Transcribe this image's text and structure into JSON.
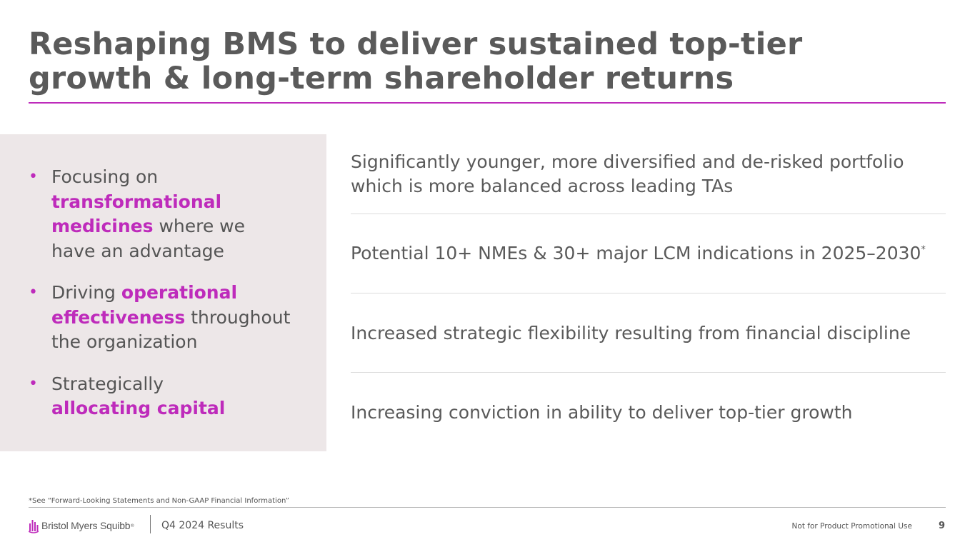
{
  "slide": {
    "title": "Reshaping BMS to deliver sustained top-tier growth & long-term shareholder returns"
  },
  "left_panel": {
    "bullets": [
      {
        "pre": "Focusing on ",
        "highlight": "transformational medicines",
        "post": " where we have an advantage"
      },
      {
        "pre": "Driving ",
        "highlight": "operational effectiveness",
        "post": " throughout the organization"
      },
      {
        "pre": "Strategically ",
        "highlight": "allocating capital",
        "post": ""
      }
    ]
  },
  "right_items": [
    {
      "text": "Significantly younger, more diversified and de-risked portfolio which is more balanced across leading TAs",
      "sup": ""
    },
    {
      "text": "Potential 10+ NMEs & 30+ major LCM indications in 2025–2030",
      "sup": "*"
    },
    {
      "text": "Increased strategic flexibility resulting from financial discipline",
      "sup": ""
    },
    {
      "text": "Increasing conviction in ability to deliver top-tier growth",
      "sup": ""
    }
  ],
  "footer": {
    "footnote": "*See “Forward-Looking Statements and Non-GAAP Financial Information”",
    "logo_text": "Bristol Myers Squibb",
    "logo_reg": "®",
    "report_label": "Q4 2024 Results",
    "disclaimer": "Not for Product Promotional Use",
    "page_number": "9"
  },
  "colors": {
    "accent": "#be2bbb",
    "panel_bg": "#ede7e8",
    "text": "#555555"
  },
  "icons": {
    "logo_mark": "bms-logo-icon"
  }
}
